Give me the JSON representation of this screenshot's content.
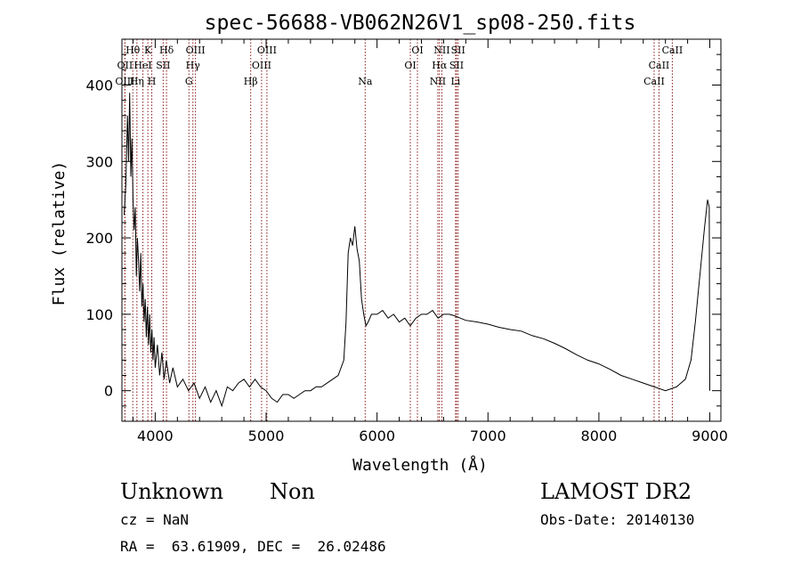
{
  "chart_data": {
    "type": "line",
    "title": "spec-56688-VB062N26V1_sp08-250.fits",
    "xlabel": "Wavelength (Å)",
    "ylabel": "Flux (relative)",
    "xlim": [
      3700,
      9100
    ],
    "ylim": [
      -40,
      460
    ],
    "xticks": [
      4000,
      5000,
      6000,
      7000,
      8000,
      9000
    ],
    "yticks": [
      0,
      100,
      200,
      300,
      400
    ],
    "line_color": "#000000",
    "marker_color": "#8b1a1a",
    "grid": false,
    "series": [
      {
        "points": [
          [
            3720,
            230
          ],
          [
            3735,
            270
          ],
          [
            3750,
            360
          ],
          [
            3760,
            300
          ],
          [
            3770,
            390
          ],
          [
            3780,
            280
          ],
          [
            3790,
            330
          ],
          [
            3800,
            250
          ],
          [
            3810,
            210
          ],
          [
            3820,
            240
          ],
          [
            3830,
            150
          ],
          [
            3840,
            200
          ],
          [
            3850,
            170
          ],
          [
            3860,
            130
          ],
          [
            3870,
            180
          ],
          [
            3880,
            110
          ],
          [
            3890,
            140
          ],
          [
            3900,
            90
          ],
          [
            3910,
            120
          ],
          [
            3920,
            70
          ],
          [
            3930,
            110
          ],
          [
            3940,
            60
          ],
          [
            3950,
            100
          ],
          [
            3960,
            50
          ],
          [
            3970,
            80
          ],
          [
            3980,
            40
          ],
          [
            3990,
            70
          ],
          [
            4000,
            30
          ],
          [
            4020,
            60
          ],
          [
            4040,
            20
          ],
          [
            4060,
            50
          ],
          [
            4080,
            15
          ],
          [
            4100,
            40
          ],
          [
            4130,
            10
          ],
          [
            4160,
            30
          ],
          [
            4200,
            5
          ],
          [
            4250,
            15
          ],
          [
            4300,
            0
          ],
          [
            4350,
            10
          ],
          [
            4400,
            -10
          ],
          [
            4450,
            5
          ],
          [
            4500,
            -15
          ],
          [
            4550,
            0
          ],
          [
            4600,
            -20
          ],
          [
            4650,
            5
          ],
          [
            4700,
            0
          ],
          [
            4750,
            10
          ],
          [
            4800,
            15
          ],
          [
            4850,
            5
          ],
          [
            4900,
            15
          ],
          [
            4950,
            5
          ],
          [
            5000,
            0
          ],
          [
            5050,
            -10
          ],
          [
            5100,
            -15
          ],
          [
            5150,
            -5
          ],
          [
            5200,
            -5
          ],
          [
            5250,
            -10
          ],
          [
            5300,
            -5
          ],
          [
            5350,
            0
          ],
          [
            5400,
            0
          ],
          [
            5450,
            5
          ],
          [
            5500,
            5
          ],
          [
            5550,
            10
          ],
          [
            5600,
            15
          ],
          [
            5650,
            20
          ],
          [
            5700,
            40
          ],
          [
            5720,
            90
          ],
          [
            5740,
            180
          ],
          [
            5760,
            200
          ],
          [
            5780,
            190
          ],
          [
            5800,
            215
          ],
          [
            5820,
            185
          ],
          [
            5840,
            170
          ],
          [
            5860,
            120
          ],
          [
            5880,
            100
          ],
          [
            5900,
            85
          ],
          [
            5920,
            90
          ],
          [
            5950,
            100
          ],
          [
            6000,
            100
          ],
          [
            6050,
            105
          ],
          [
            6100,
            95
          ],
          [
            6150,
            100
          ],
          [
            6200,
            90
          ],
          [
            6250,
            95
          ],
          [
            6300,
            85
          ],
          [
            6350,
            95
          ],
          [
            6400,
            100
          ],
          [
            6450,
            100
          ],
          [
            6500,
            105
          ],
          [
            6550,
            95
          ],
          [
            6600,
            100
          ],
          [
            6650,
            100
          ],
          [
            6700,
            98
          ],
          [
            6750,
            95
          ],
          [
            6800,
            92
          ],
          [
            6900,
            90
          ],
          [
            7000,
            87
          ],
          [
            7100,
            83
          ],
          [
            7200,
            80
          ],
          [
            7300,
            78
          ],
          [
            7400,
            72
          ],
          [
            7500,
            68
          ],
          [
            7600,
            62
          ],
          [
            7700,
            55
          ],
          [
            7800,
            47
          ],
          [
            7900,
            40
          ],
          [
            8000,
            35
          ],
          [
            8100,
            28
          ],
          [
            8200,
            20
          ],
          [
            8300,
            15
          ],
          [
            8400,
            10
          ],
          [
            8500,
            5
          ],
          [
            8600,
            0
          ],
          [
            8700,
            5
          ],
          [
            8780,
            15
          ],
          [
            8830,
            40
          ],
          [
            8870,
            90
          ],
          [
            8910,
            150
          ],
          [
            8950,
            210
          ],
          [
            8980,
            250
          ],
          [
            8995,
            240
          ],
          [
            9000,
            0
          ]
        ]
      }
    ],
    "lines": [
      {
        "label": "OII",
        "x": 3727,
        "row": 1
      },
      {
        "label": "OIII",
        "x": 3727,
        "row": 2
      },
      {
        "label": "Hθ",
        "x": 3798,
        "row": 0
      },
      {
        "label": "Hη",
        "x": 3835,
        "row": 2
      },
      {
        "label": "HeI",
        "x": 3889,
        "row": 1
      },
      {
        "label": "K",
        "x": 3934,
        "row": 0
      },
      {
        "label": "H",
        "x": 3969,
        "row": 2
      },
      {
        "label": "SII",
        "x": 4072,
        "row": 1
      },
      {
        "label": "Hδ",
        "x": 4102,
        "row": 0
      },
      {
        "label": "G",
        "x": 4304,
        "row": 2
      },
      {
        "label": "Hγ",
        "x": 4340,
        "row": 1
      },
      {
        "label": "OIII",
        "x": 4363,
        "row": 0
      },
      {
        "label": "Hβ",
        "x": 4861,
        "row": 2
      },
      {
        "label": "OIII",
        "x": 4959,
        "row": 1
      },
      {
        "label": "OIII",
        "x": 5007,
        "row": 0
      },
      {
        "label": "Na",
        "x": 5893,
        "row": 2
      },
      {
        "label": "OI",
        "x": 6300,
        "row": 1
      },
      {
        "label": "OI",
        "x": 6364,
        "row": 0
      },
      {
        "label": "NII",
        "x": 6548,
        "row": 2
      },
      {
        "label": "Hα",
        "x": 6563,
        "row": 1
      },
      {
        "label": "NII",
        "x": 6584,
        "row": 0
      },
      {
        "label": "Li",
        "x": 6708,
        "row": 2
      },
      {
        "label": "SII",
        "x": 6717,
        "row": 1
      },
      {
        "label": "SII",
        "x": 6731,
        "row": 0
      },
      {
        "label": "CaII",
        "x": 8498,
        "row": 2
      },
      {
        "label": "CaII",
        "x": 8542,
        "row": 1
      },
      {
        "label": "CaII",
        "x": 8662,
        "row": 0
      }
    ]
  },
  "meta": {
    "class": "Unknown",
    "subclass": "Non",
    "survey": "LAMOST DR2",
    "cz": "cz = NaN",
    "obs_date": "Obs-Date: 20140130",
    "radec": "RA =  63.61909, DEC =  26.02486"
  }
}
